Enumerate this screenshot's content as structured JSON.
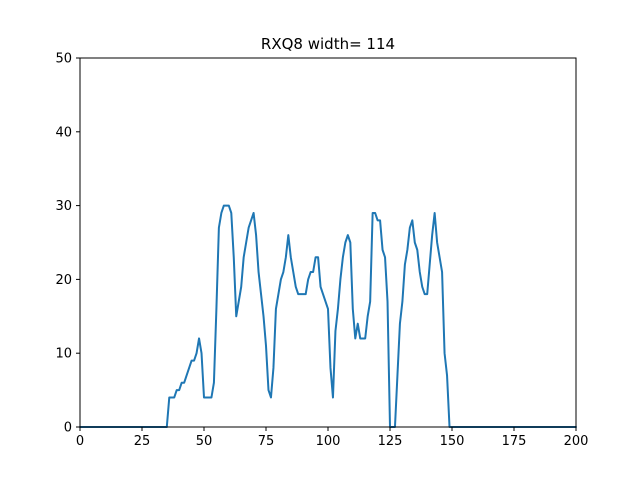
{
  "chart_data": {
    "type": "line",
    "title": "RXQ8 width= 114",
    "xlabel": "",
    "ylabel": "",
    "xlim": [
      0,
      200
    ],
    "ylim": [
      0,
      50
    ],
    "xticks": [
      0,
      25,
      50,
      75,
      100,
      125,
      150,
      175,
      200
    ],
    "yticks": [
      0,
      10,
      20,
      30,
      40,
      50
    ],
    "grid": false,
    "color": "#1f77b4",
    "series": [
      {
        "x": [
          0,
          35,
          36,
          37,
          38,
          39,
          40,
          41,
          42,
          43,
          44,
          45,
          46,
          47,
          48,
          49,
          50,
          51,
          52,
          53,
          54,
          55,
          56,
          57,
          58,
          59,
          60,
          61,
          62,
          63,
          64,
          65,
          66,
          67,
          68,
          69,
          70,
          71,
          72,
          73,
          74,
          75,
          76,
          77,
          78,
          79,
          80,
          81,
          82,
          83,
          84,
          85,
          86,
          87,
          88,
          89,
          90,
          91,
          92,
          93,
          94,
          95,
          96,
          97,
          98,
          99,
          100,
          101,
          102,
          103,
          104,
          105,
          106,
          107,
          108,
          109,
          110,
          111,
          112,
          113,
          114,
          115,
          116,
          117,
          118,
          119,
          120,
          121,
          122,
          123,
          124,
          125,
          126,
          127,
          128,
          129,
          130,
          131,
          132,
          133,
          134,
          135,
          136,
          137,
          138,
          139,
          140,
          141,
          142,
          143,
          144,
          145,
          146,
          147,
          148,
          149,
          150,
          200
        ],
        "y": [
          0,
          0,
          4,
          4,
          4,
          5,
          5,
          6,
          6,
          7,
          8,
          9,
          9,
          10,
          12,
          10,
          4,
          4,
          4,
          4,
          6,
          16,
          27,
          29,
          30,
          30,
          30,
          29,
          23,
          15,
          17,
          19,
          23,
          25,
          27,
          28,
          29,
          26,
          21,
          18,
          15,
          11,
          5,
          4,
          8,
          16,
          18,
          20,
          21,
          23,
          26,
          23,
          21,
          19,
          18,
          18,
          18,
          18,
          20,
          21,
          21,
          23,
          23,
          19,
          18,
          17,
          16,
          8,
          4,
          13,
          16,
          20,
          23,
          25,
          26,
          25,
          16,
          12,
          14,
          12,
          12,
          12,
          15,
          17,
          29,
          29,
          28,
          28,
          24,
          23,
          17,
          0,
          0,
          0,
          7,
          14,
          17,
          22,
          24,
          27,
          28,
          25,
          24,
          21,
          19,
          18,
          18,
          22,
          26,
          29,
          25,
          23,
          21,
          10,
          7,
          0,
          0,
          0
        ]
      }
    ]
  }
}
